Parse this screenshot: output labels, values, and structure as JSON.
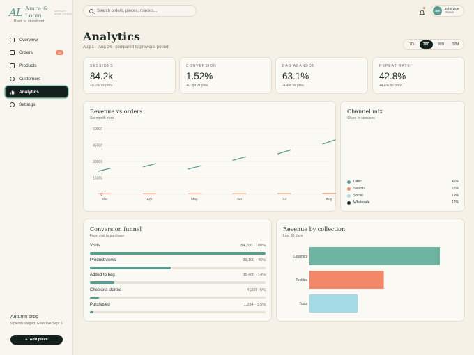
{
  "brand": {
    "mark": "AL",
    "name": "Amra & Loom",
    "tagline": "ARTISAN HOME GOODS"
  },
  "back_link": "← Back to storefront",
  "nav": [
    {
      "label": "Overview",
      "icon": "grid-icon"
    },
    {
      "label": "Orders",
      "icon": "inbox-icon",
      "badge": "12"
    },
    {
      "label": "Products",
      "icon": "box-icon"
    },
    {
      "label": "Customers",
      "icon": "users-icon"
    },
    {
      "label": "Analytics",
      "icon": "chart-icon",
      "active": true
    },
    {
      "label": "Settings",
      "icon": "gear-icon"
    }
  ],
  "sidebar_footer": {
    "title": "Autumn drop",
    "desc": "9 pieces staged. Goes live Sept 6",
    "button": "Add piece"
  },
  "search": {
    "placeholder": "Search orders, pieces, makers..."
  },
  "user": {
    "initials": "SM",
    "name": "John Doe",
    "role": "Owner"
  },
  "page": {
    "title": "Analytics",
    "subtitle": "Aug 1 – Aug 24 · compared to previous period"
  },
  "ranges": [
    {
      "label": "7D"
    },
    {
      "label": "30D",
      "active": true
    },
    {
      "label": "90D"
    },
    {
      "label": "12M"
    }
  ],
  "kpis": [
    {
      "label": "SESSIONS",
      "value": "84.2k",
      "delta": "+9.2% vs prev."
    },
    {
      "label": "CONVERSION",
      "value": "1.52%",
      "delta": "+0.3pt vs prev."
    },
    {
      "label": "BAG ABANDON",
      "value": "63.1%",
      "delta": "-4.4% vs prev."
    },
    {
      "label": "REPEAT RATE",
      "value": "42.8%",
      "delta": "+4.6% vs prev."
    }
  ],
  "revenue_chart": {
    "title": "Revenue vs orders",
    "subtitle": "Six-month trend",
    "colors": {
      "revenue": "#5a9c8f",
      "orders": "#ef8a6c"
    },
    "chart_data": {
      "type": "line",
      "categories": [
        "Mar",
        "Apr",
        "May",
        "Jun",
        "Jul",
        "Aug"
      ],
      "series": [
        {
          "values": [
            22000,
            26000,
            24000,
            32000,
            38000,
            47000
          ]
        },
        {
          "values": [
            400,
            450,
            420,
            500,
            550,
            600
          ]
        }
      ],
      "yticks": [
        "60000",
        "45000",
        "30000",
        "15000",
        "0"
      ],
      "ylim": [
        0,
        60000
      ],
      "grid": true
    }
  },
  "channel_mix": {
    "title": "Channel mix",
    "subtitle": "Share of sessions",
    "chart_data": {
      "type": "pie",
      "items": [
        {
          "label": "Direct",
          "value": "42%",
          "color": "#5a9c8f"
        },
        {
          "label": "Search",
          "value": "27%",
          "color": "#ef8a6c"
        },
        {
          "label": "Social",
          "value": "19%",
          "color": "#a4d9e6"
        },
        {
          "label": "Wholesale",
          "value": "12%",
          "color": "#1f2a26"
        }
      ]
    }
  },
  "funnel": {
    "title": "Conversion funnel",
    "subtitle": "From visit to purchase",
    "steps": [
      {
        "label": "Visits",
        "value": "84,200 · 100%",
        "pct": 100
      },
      {
        "label": "Product views",
        "value": "39,100 · 46%",
        "pct": 46
      },
      {
        "label": "Added to bag",
        "value": "11,400 · 14%",
        "pct": 14
      },
      {
        "label": "Checkout started",
        "value": "4,200 · 5%",
        "pct": 5
      },
      {
        "label": "Purchased",
        "value": "1,284 · 1.5%",
        "pct": 1.5
      }
    ]
  },
  "collection": {
    "title": "Revenue by collection",
    "subtitle": "Last 30 days",
    "chart_data": {
      "type": "bar",
      "orientation": "horizontal",
      "categories": [
        "Ceramics",
        "Textiles",
        "Tools"
      ],
      "values": [
        100,
        57,
        37
      ],
      "colors": [
        "#6eb4a2",
        "#f2876a",
        "#a4d9e6"
      ]
    }
  }
}
